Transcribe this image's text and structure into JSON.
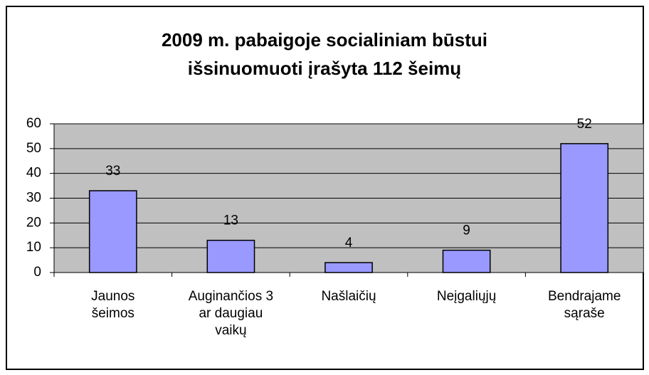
{
  "chart_data": {
    "type": "bar",
    "title": "2009 m. pabaigoje socialiniam būstui\nišsinuomuoti įrašyta 112 šeimų",
    "categories": [
      "Jaunos\nšeimos",
      "Auginančios 3\nar daugiau\nvaikų",
      "Našlaičių",
      "Neįgaliųjų",
      "Bendrajame\nsąraše"
    ],
    "values": [
      33,
      13,
      4,
      9,
      52
    ],
    "color": "#9999ff",
    "plot_background": "#c0c0c0",
    "ylim": [
      0,
      60
    ],
    "yticks": [
      0,
      10,
      20,
      30,
      40,
      50,
      60
    ],
    "grid": true
  }
}
